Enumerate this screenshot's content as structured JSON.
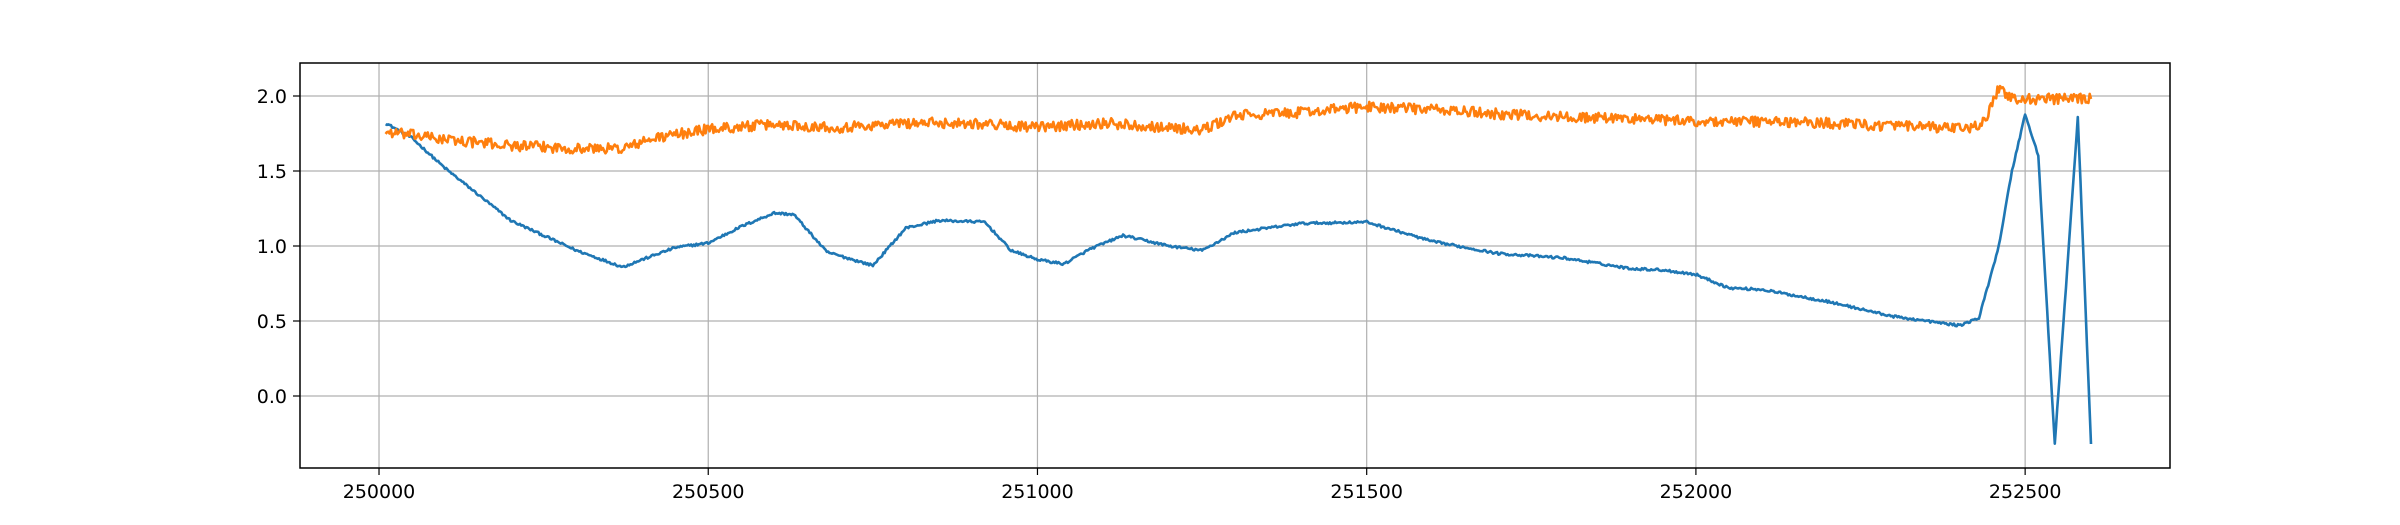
{
  "chart_data": {
    "type": "line",
    "title": "",
    "xlabel": "",
    "ylabel": "",
    "xlim": [
      249880,
      252720
    ],
    "ylim": [
      -0.48,
      2.22
    ],
    "grid": true,
    "legend": "none",
    "x_ticks": [
      {
        "value": 250000,
        "label": "250000"
      },
      {
        "value": 250500,
        "label": "250500"
      },
      {
        "value": 251000,
        "label": "251000"
      },
      {
        "value": 251500,
        "label": "251500"
      },
      {
        "value": 252000,
        "label": "252000"
      },
      {
        "value": 252500,
        "label": "252500"
      }
    ],
    "y_ticks": [
      {
        "value": 0.0,
        "label": "0.0"
      },
      {
        "value": 0.5,
        "label": "0.5"
      },
      {
        "value": 1.0,
        "label": "1.0"
      },
      {
        "value": 1.5,
        "label": "1.5"
      },
      {
        "value": 2.0,
        "label": "2.0"
      }
    ],
    "series": [
      {
        "color": "#1f77b4",
        "noise": 0.008,
        "x": [
          250010,
          250050,
          250100,
          250200,
          250300,
          250370,
          250400,
          250450,
          250500,
          250550,
          250600,
          250630,
          250680,
          250750,
          250800,
          250850,
          250920,
          250960,
          251000,
          251040,
          251080,
          251130,
          251200,
          251250,
          251300,
          251400,
          251500,
          251600,
          251700,
          251800,
          251900,
          251950,
          252000,
          252050,
          252100,
          252200,
          252300,
          252400,
          252430,
          252460,
          252480,
          252500,
          252520,
          252545,
          252560,
          252580,
          252600
        ],
        "y": [
          1.82,
          1.72,
          1.52,
          1.17,
          0.97,
          0.86,
          0.91,
          0.99,
          1.02,
          1.13,
          1.22,
          1.21,
          0.96,
          0.87,
          1.12,
          1.17,
          1.16,
          0.97,
          0.91,
          0.88,
          0.98,
          1.07,
          1.0,
          0.97,
          1.09,
          1.15,
          1.16,
          1.03,
          0.95,
          0.92,
          0.85,
          0.84,
          0.81,
          0.72,
          0.71,
          0.63,
          0.53,
          0.47,
          0.52,
          1.0,
          1.5,
          1.88,
          1.6,
          -0.32,
          0.6,
          1.86,
          -0.32
        ]
      },
      {
        "color": "#ff7f0e",
        "noise": 0.035,
        "x": [
          250010,
          250050,
          250100,
          250200,
          250300,
          250370,
          250420,
          250500,
          250600,
          250700,
          250800,
          250900,
          251000,
          251100,
          251200,
          251250,
          251300,
          251400,
          251500,
          251600,
          251700,
          251800,
          251900,
          252000,
          252100,
          252200,
          252300,
          252420,
          252440,
          252460,
          252480,
          252500,
          252560,
          252600
        ],
        "y": [
          1.76,
          1.74,
          1.71,
          1.67,
          1.65,
          1.65,
          1.72,
          1.78,
          1.81,
          1.79,
          1.82,
          1.82,
          1.79,
          1.82,
          1.79,
          1.77,
          1.87,
          1.89,
          1.93,
          1.91,
          1.88,
          1.86,
          1.85,
          1.83,
          1.83,
          1.82,
          1.8,
          1.78,
          1.85,
          2.05,
          1.98,
          1.98,
          1.98,
          1.98
        ]
      }
    ]
  }
}
